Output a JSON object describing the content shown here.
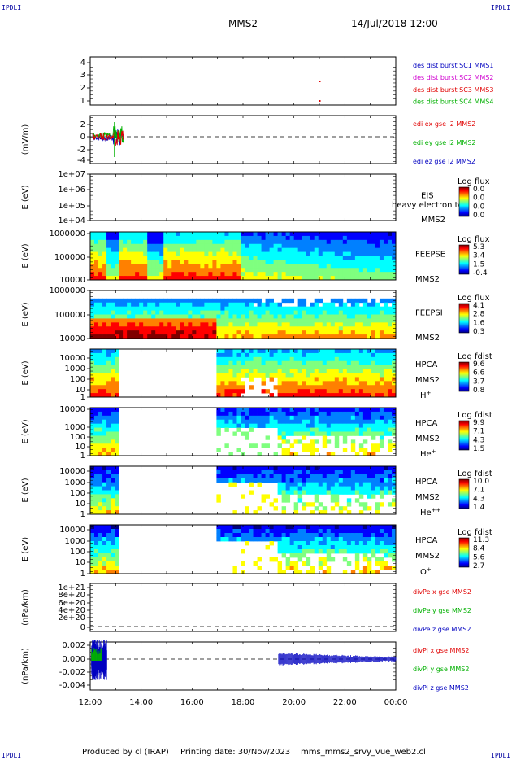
{
  "corner_labels": {
    "top_left": "IPDLI",
    "top_right": "IPDLI",
    "bottom_left": "IPDLI",
    "bottom_right": "IPDLI"
  },
  "header": {
    "spacecraft": "MMS2",
    "datetime": "14/Jul/2018 12:00"
  },
  "footer": {
    "produced_by": "Produced by cl (IRAP)",
    "printing_date": "Printing date: 30/Nov/2023",
    "filename": "mms_mms2_srvy_vue_web2.cl"
  },
  "colors": {
    "red": "#e00000",
    "magenta": "#d000d0",
    "green": "#00b000",
    "blue": "#0000c0"
  },
  "chart_data": {
    "type": "heatmap",
    "x_ticks": [
      "12:00",
      "14:00",
      "16:00",
      "18:00",
      "20:00",
      "22:00",
      "00:00"
    ],
    "panels": [
      {
        "id": "sc-burst",
        "ylabel": "",
        "y_ticks": [
          "4",
          "3",
          "2",
          "1"
        ],
        "legend": [
          {
            "text": "des dist burst SC1 MMS1",
            "color": "blue"
          },
          {
            "text": "des dist burst SC2 MMS2",
            "color": "magenta"
          },
          {
            "text": "des dist burst SC3 MMS3",
            "color": "red"
          },
          {
            "text": "des dist burst SC4 MMS4",
            "color": "green"
          }
        ],
        "burst_marks": [
          {
            "time": "21:00",
            "sc": 2.5
          },
          {
            "time": "21:00",
            "sc": 1.0
          }
        ]
      },
      {
        "id": "edi-e",
        "ylabel": "(mV/m)",
        "y_ticks": [
          "2",
          "0",
          "-2",
          "-4"
        ],
        "legend": [
          {
            "text": "edi ex gse l2 MMS2",
            "color": "red"
          },
          {
            "text": "edi ey gse l2 MMS2",
            "color": "green"
          },
          {
            "text": "edi ez gse l2 MMS2",
            "color": "blue"
          }
        ]
      },
      {
        "id": "eis",
        "ylabel": "E (eV)",
        "y_ticks": [
          "1e+07",
          "1e+06",
          "1e+05",
          "1e+04"
        ],
        "labels": [
          "EIS",
          "MMS2"
        ],
        "overlay": "heavy electron to",
        "colorbar": {
          "title": "Log flux",
          "ticks": [
            "0.0",
            "0.0",
            "0.0",
            "0.0"
          ]
        }
      },
      {
        "id": "feepse",
        "ylabel": "E (eV)",
        "y_ticks": [
          "1000000",
          "100000",
          "10000"
        ],
        "labels": [
          "FEEPSE",
          "MMS2"
        ],
        "colorbar": {
          "title": "Log flux",
          "ticks": [
            "5.3",
            "3.4",
            "1.5",
            "-0.4"
          ]
        }
      },
      {
        "id": "feepsi",
        "ylabel": "E (eV)",
        "y_ticks": [
          "1000000",
          "100000",
          "10000"
        ],
        "labels": [
          "FEEPSI",
          "MMS2"
        ],
        "colorbar": {
          "title": "Log flux",
          "ticks": [
            "4.1",
            "2.8",
            "1.6",
            "0.3"
          ]
        }
      },
      {
        "id": "hpca-h",
        "ylabel": "E (eV)",
        "y_ticks": [
          "10000",
          "1000",
          "100",
          "10",
          "1"
        ],
        "labels": [
          "HPCA",
          "MMS2"
        ],
        "species": "H",
        "species_sup": "+",
        "colorbar": {
          "title": "Log fdist",
          "ticks": [
            "9.6",
            "6.6",
            "3.7",
            "0.8"
          ]
        }
      },
      {
        "id": "hpca-he",
        "ylabel": "E (eV)",
        "y_ticks": [
          "10000",
          "1000",
          "100",
          "10",
          "1"
        ],
        "labels": [
          "HPCA",
          "MMS2"
        ],
        "species": "He",
        "species_sup": "+",
        "colorbar": {
          "title": "Log fdist",
          "ticks": [
            "9.9",
            "7.1",
            "4.3",
            "1.5"
          ]
        }
      },
      {
        "id": "hpca-he2",
        "ylabel": "E (eV)",
        "y_ticks": [
          "10000",
          "1000",
          "100",
          "10",
          "1"
        ],
        "labels": [
          "HPCA",
          "MMS2"
        ],
        "species": "He",
        "species_sup": "++",
        "colorbar": {
          "title": "Log fdist",
          "ticks": [
            "10.0",
            "7.1",
            "4.3",
            "1.4"
          ]
        }
      },
      {
        "id": "hpca-o",
        "ylabel": "E (eV)",
        "y_ticks": [
          "10000",
          "1000",
          "100",
          "10",
          "1"
        ],
        "labels": [
          "HPCA",
          "MMS2"
        ],
        "species": "O",
        "species_sup": "+",
        "colorbar": {
          "title": "Log fdist",
          "ticks": [
            "11.3",
            "8.4",
            "5.6",
            "2.7"
          ]
        }
      },
      {
        "id": "divpe",
        "ylabel": "(nPa/km)",
        "y_ticks": [
          "1e+21",
          "8e+20",
          "6e+20",
          "4e+20",
          "2e+20",
          "0"
        ],
        "legend": [
          {
            "text": "divPe x gse MMS2",
            "color": "red"
          },
          {
            "text": "divPe y gse MMS2",
            "color": "green"
          },
          {
            "text": "divPe z gse MMS2",
            "color": "blue"
          }
        ]
      },
      {
        "id": "divpi",
        "ylabel": "(nPa/km)",
        "y_ticks": [
          "0.002",
          "0.000",
          "-0.002",
          "-0.004"
        ],
        "legend": [
          {
            "text": "divPi x gse MMS2",
            "color": "red"
          },
          {
            "text": "divPi y gse MMS2",
            "color": "green"
          },
          {
            "text": "divPi z gse MMS2",
            "color": "blue"
          }
        ]
      }
    ]
  }
}
